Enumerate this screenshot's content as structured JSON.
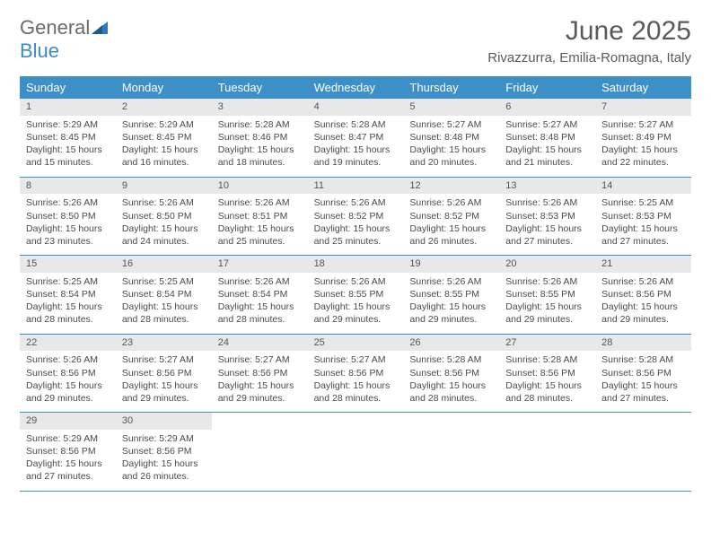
{
  "logo": {
    "part1": "General",
    "part2": "Blue"
  },
  "title": "June 2025",
  "location": "Rivazzurra, Emilia-Romagna, Italy",
  "colors": {
    "header_bg": "#3d8fc8",
    "header_text": "#ffffff",
    "daynum_bg": "#e8e8e8",
    "text": "#4a4a4a",
    "border": "#3d8fc8",
    "logo_gray": "#6b6b6b",
    "logo_blue": "#3a8cc4"
  },
  "weekdays": [
    "Sunday",
    "Monday",
    "Tuesday",
    "Wednesday",
    "Thursday",
    "Friday",
    "Saturday"
  ],
  "days": [
    {
      "n": "1",
      "sr": "5:29 AM",
      "ss": "8:45 PM",
      "dl": "15 hours and 15 minutes."
    },
    {
      "n": "2",
      "sr": "5:29 AM",
      "ss": "8:45 PM",
      "dl": "15 hours and 16 minutes."
    },
    {
      "n": "3",
      "sr": "5:28 AM",
      "ss": "8:46 PM",
      "dl": "15 hours and 18 minutes."
    },
    {
      "n": "4",
      "sr": "5:28 AM",
      "ss": "8:47 PM",
      "dl": "15 hours and 19 minutes."
    },
    {
      "n": "5",
      "sr": "5:27 AM",
      "ss": "8:48 PM",
      "dl": "15 hours and 20 minutes."
    },
    {
      "n": "6",
      "sr": "5:27 AM",
      "ss": "8:48 PM",
      "dl": "15 hours and 21 minutes."
    },
    {
      "n": "7",
      "sr": "5:27 AM",
      "ss": "8:49 PM",
      "dl": "15 hours and 22 minutes."
    },
    {
      "n": "8",
      "sr": "5:26 AM",
      "ss": "8:50 PM",
      "dl": "15 hours and 23 minutes."
    },
    {
      "n": "9",
      "sr": "5:26 AM",
      "ss": "8:50 PM",
      "dl": "15 hours and 24 minutes."
    },
    {
      "n": "10",
      "sr": "5:26 AM",
      "ss": "8:51 PM",
      "dl": "15 hours and 25 minutes."
    },
    {
      "n": "11",
      "sr": "5:26 AM",
      "ss": "8:52 PM",
      "dl": "15 hours and 25 minutes."
    },
    {
      "n": "12",
      "sr": "5:26 AM",
      "ss": "8:52 PM",
      "dl": "15 hours and 26 minutes."
    },
    {
      "n": "13",
      "sr": "5:26 AM",
      "ss": "8:53 PM",
      "dl": "15 hours and 27 minutes."
    },
    {
      "n": "14",
      "sr": "5:25 AM",
      "ss": "8:53 PM",
      "dl": "15 hours and 27 minutes."
    },
    {
      "n": "15",
      "sr": "5:25 AM",
      "ss": "8:54 PM",
      "dl": "15 hours and 28 minutes."
    },
    {
      "n": "16",
      "sr": "5:25 AM",
      "ss": "8:54 PM",
      "dl": "15 hours and 28 minutes."
    },
    {
      "n": "17",
      "sr": "5:26 AM",
      "ss": "8:54 PM",
      "dl": "15 hours and 28 minutes."
    },
    {
      "n": "18",
      "sr": "5:26 AM",
      "ss": "8:55 PM",
      "dl": "15 hours and 29 minutes."
    },
    {
      "n": "19",
      "sr": "5:26 AM",
      "ss": "8:55 PM",
      "dl": "15 hours and 29 minutes."
    },
    {
      "n": "20",
      "sr": "5:26 AM",
      "ss": "8:55 PM",
      "dl": "15 hours and 29 minutes."
    },
    {
      "n": "21",
      "sr": "5:26 AM",
      "ss": "8:56 PM",
      "dl": "15 hours and 29 minutes."
    },
    {
      "n": "22",
      "sr": "5:26 AM",
      "ss": "8:56 PM",
      "dl": "15 hours and 29 minutes."
    },
    {
      "n": "23",
      "sr": "5:27 AM",
      "ss": "8:56 PM",
      "dl": "15 hours and 29 minutes."
    },
    {
      "n": "24",
      "sr": "5:27 AM",
      "ss": "8:56 PM",
      "dl": "15 hours and 29 minutes."
    },
    {
      "n": "25",
      "sr": "5:27 AM",
      "ss": "8:56 PM",
      "dl": "15 hours and 28 minutes."
    },
    {
      "n": "26",
      "sr": "5:28 AM",
      "ss": "8:56 PM",
      "dl": "15 hours and 28 minutes."
    },
    {
      "n": "27",
      "sr": "5:28 AM",
      "ss": "8:56 PM",
      "dl": "15 hours and 28 minutes."
    },
    {
      "n": "28",
      "sr": "5:28 AM",
      "ss": "8:56 PM",
      "dl": "15 hours and 27 minutes."
    },
    {
      "n": "29",
      "sr": "5:29 AM",
      "ss": "8:56 PM",
      "dl": "15 hours and 27 minutes."
    },
    {
      "n": "30",
      "sr": "5:29 AM",
      "ss": "8:56 PM",
      "dl": "15 hours and 26 minutes."
    }
  ],
  "labels": {
    "sunrise": "Sunrise:",
    "sunset": "Sunset:",
    "daylight": "Daylight:"
  }
}
